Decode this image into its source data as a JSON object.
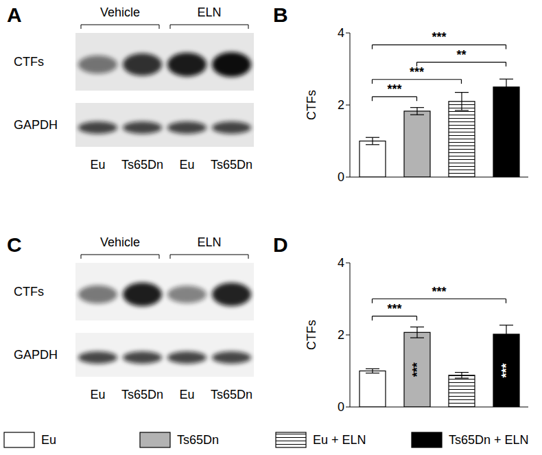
{
  "blots": [
    {
      "label": "A",
      "groups": [
        "Vehicle",
        "ELN"
      ],
      "rows": [
        "CTFs",
        "GAPDH"
      ],
      "lanes": [
        "Eu",
        "Ts65Dn",
        "Eu",
        "Ts65Dn"
      ]
    },
    {
      "label": "C",
      "groups": [
        "Vehicle",
        "ELN"
      ],
      "rows": [
        "CTFs",
        "GAPDH"
      ],
      "lanes": [
        "Eu",
        "Ts65Dn",
        "Eu",
        "Ts65Dn"
      ]
    }
  ],
  "chart_data": [
    {
      "label": "B",
      "type": "bar",
      "y_label": "CTFs",
      "categories": [
        "Eu",
        "Ts65Dn",
        "Eu + ELN",
        "Ts65Dn + ELN"
      ],
      "values": [
        1.0,
        1.83,
        2.1,
        2.5
      ],
      "errors": [
        0.1,
        0.1,
        0.25,
        0.22
      ],
      "colors": [
        "#ffffff",
        "#b3b3b3",
        "#ffffff",
        "#000000"
      ],
      "ylim": [
        0,
        4
      ],
      "yticks": [
        0,
        2,
        4
      ],
      "tick_labels": "y",
      "brackets": [
        {
          "from": 0,
          "to": 1,
          "label": "***"
        },
        {
          "from": 0,
          "to": 2,
          "label": "***"
        },
        {
          "from": 1,
          "to": 3,
          "label": "**"
        },
        {
          "from": 0,
          "to": 3,
          "label": "***"
        }
      ],
      "bar_annotations": []
    },
    {
      "label": "D",
      "type": "bar",
      "y_label": "CTFs",
      "categories": [
        "Eu",
        "Ts65Dn",
        "Eu + ELN",
        "Ts65Dn + ELN"
      ],
      "values": [
        1.0,
        2.07,
        0.88,
        2.02
      ],
      "errors": [
        0.06,
        0.15,
        0.08,
        0.25
      ],
      "colors": [
        "#ffffff",
        "#b3b3b3",
        "#ffffff",
        "#000000"
      ],
      "ylim": [
        0,
        4
      ],
      "yticks": [
        0,
        2,
        4
      ],
      "tick_labels": "y",
      "brackets": [
        {
          "from": 0,
          "to": 1,
          "label": "***"
        },
        {
          "from": 0,
          "to": 3,
          "label": "***"
        }
      ],
      "bar_annotations": [
        {
          "index": 1,
          "label": "***"
        },
        {
          "index": 3,
          "label": "***"
        }
      ]
    }
  ]
}
